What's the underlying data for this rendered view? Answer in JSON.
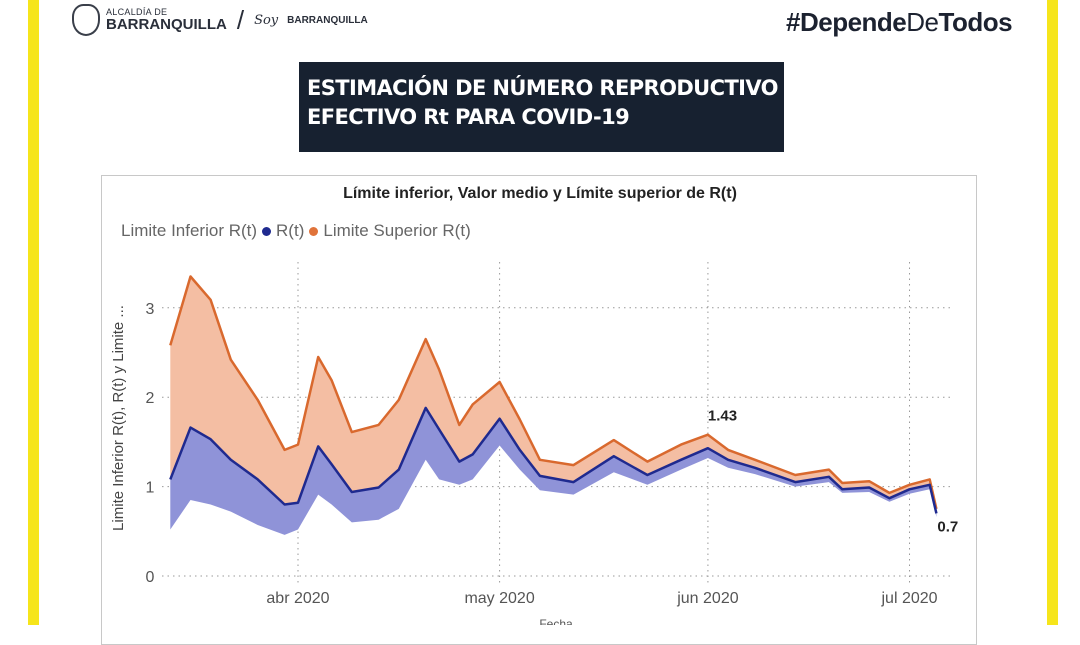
{
  "header": {
    "logo_small": "ALCALDÍA DE",
    "logo_big": "BARRANQUILLA",
    "soy": "Soy",
    "soy_brand": "BARRANQUILLA",
    "hashtag_a": "#Depende",
    "hashtag_b": "De",
    "hashtag_c": "Todos"
  },
  "banner": {
    "line1": "ESTIMACIÓN DE NÚMERO REPRODUCTIVO",
    "line2": "EFECTIVO Rt PARA COVID-19"
  },
  "colors": {
    "frame": "#f6e51b",
    "upper_line": "#d9692e",
    "upper_fill": "#f4bea3",
    "mean_line": "#1f2a8f",
    "lower_fill": "#8f93d8"
  },
  "chart_data": {
    "type": "area",
    "title": "Límite inferior, Valor medio y Límite superior de R(t)",
    "xlabel": "Fecha",
    "ylabel": "Limite Inferior R(t), R(t) y Limite ...",
    "ylim": [
      0,
      3.4
    ],
    "yticks": [
      0,
      1,
      2,
      3
    ],
    "xticks": [
      {
        "date": "2020-04-01",
        "label": "abr 2020"
      },
      {
        "date": "2020-05-01",
        "label": "may 2020"
      },
      {
        "date": "2020-06-01",
        "label": "jun 2020"
      },
      {
        "date": "2020-07-01",
        "label": "jul 2020"
      }
    ],
    "grid": true,
    "legend": "top-left",
    "legend_entries": [
      "Limite Inferior R(t)",
      "R(t)",
      "Limite Superior R(t)"
    ],
    "x": [
      "2020-03-13",
      "2020-03-16",
      "2020-03-19",
      "2020-03-22",
      "2020-03-26",
      "2020-03-30",
      "2020-04-01",
      "2020-04-04",
      "2020-04-06",
      "2020-04-09",
      "2020-04-13",
      "2020-04-16",
      "2020-04-20",
      "2020-04-22",
      "2020-04-25",
      "2020-04-27",
      "2020-05-01",
      "2020-05-04",
      "2020-05-07",
      "2020-05-12",
      "2020-05-18",
      "2020-05-23",
      "2020-05-28",
      "2020-06-01",
      "2020-06-04",
      "2020-06-08",
      "2020-06-14",
      "2020-06-19",
      "2020-06-21",
      "2020-06-25",
      "2020-06-28",
      "2020-07-01",
      "2020-07-04",
      "2020-07-05"
    ],
    "series": [
      {
        "name": "Limite Inferior R(t)",
        "values": [
          0.52,
          0.85,
          0.8,
          0.72,
          0.57,
          0.46,
          0.52,
          0.91,
          0.8,
          0.6,
          0.63,
          0.75,
          1.3,
          1.08,
          1.02,
          1.08,
          1.46,
          1.19,
          0.96,
          0.91,
          1.16,
          1.02,
          1.19,
          1.32,
          1.21,
          1.14,
          1.0,
          1.05,
          0.93,
          0.94,
          0.83,
          0.92,
          0.97,
          0.66
        ]
      },
      {
        "name": "R(t)",
        "values": [
          1.08,
          1.66,
          1.53,
          1.3,
          1.08,
          0.8,
          0.82,
          1.45,
          1.25,
          0.94,
          0.99,
          1.19,
          1.88,
          1.64,
          1.28,
          1.36,
          1.76,
          1.41,
          1.12,
          1.05,
          1.34,
          1.13,
          1.3,
          1.43,
          1.3,
          1.21,
          1.05,
          1.11,
          0.97,
          0.99,
          0.87,
          0.97,
          1.02,
          0.7
        ]
      },
      {
        "name": "Limite Superior R(t)",
        "values": [
          2.58,
          3.35,
          3.09,
          2.42,
          1.97,
          1.41,
          1.47,
          2.45,
          2.19,
          1.61,
          1.69,
          1.97,
          2.65,
          2.31,
          1.69,
          1.92,
          2.17,
          1.75,
          1.3,
          1.24,
          1.52,
          1.28,
          1.47,
          1.58,
          1.41,
          1.3,
          1.13,
          1.19,
          1.04,
          1.06,
          0.93,
          1.02,
          1.08,
          0.75
        ]
      }
    ],
    "data_labels": [
      {
        "date": "2020-06-01",
        "text": "1.43"
      },
      {
        "date": "2020-07-05",
        "text": "0.7"
      }
    ]
  }
}
